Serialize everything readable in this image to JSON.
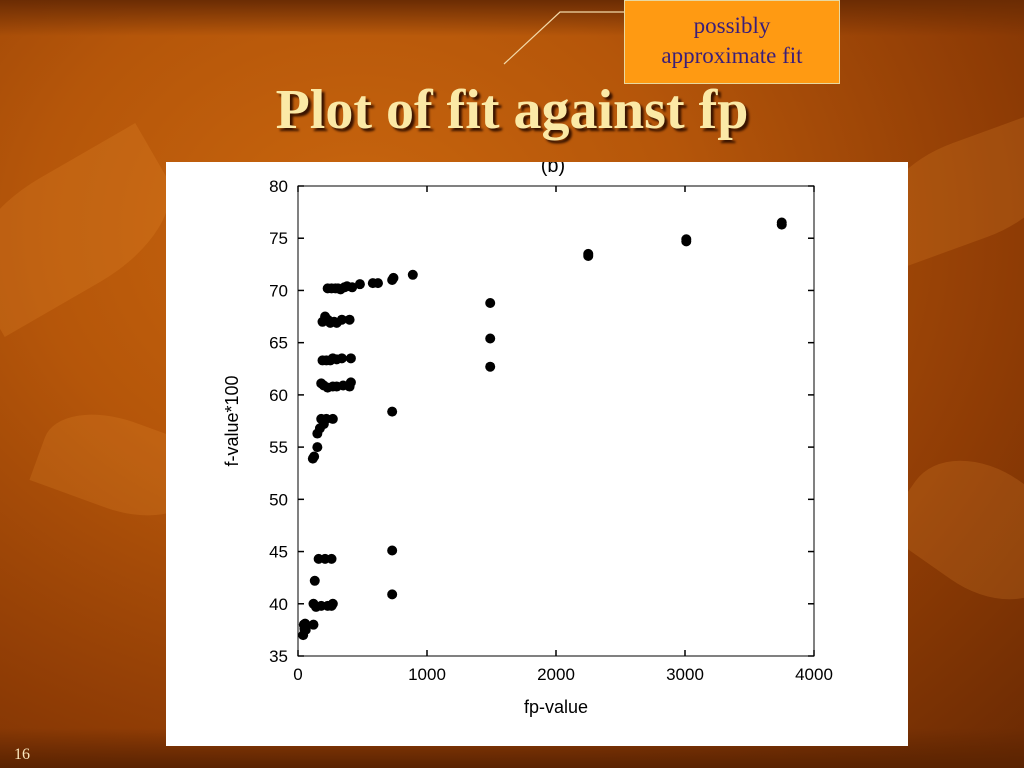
{
  "slide": {
    "title": "Plot of fit against fp",
    "number": "16"
  },
  "callout": {
    "line1": "possibly",
    "line2": "approximate fit"
  },
  "colors": {
    "background": "#b5560a",
    "title": "#fbe9a6",
    "callout_fill": "#ff9a12",
    "callout_text": "#3a1e7a"
  },
  "chart_data": {
    "type": "scatter",
    "title": "(b)",
    "xlabel": "fp-value",
    "ylabel": "f-value*100",
    "xlim": [
      0,
      4000
    ],
    "ylim": [
      35,
      80
    ],
    "xticks": [
      0,
      1000,
      2000,
      3000,
      4000
    ],
    "yticks": [
      35,
      40,
      45,
      50,
      55,
      60,
      65,
      70,
      75,
      80
    ],
    "grid": false,
    "points": [
      [
        40,
        37
      ],
      [
        45,
        38
      ],
      [
        50,
        37.6
      ],
      [
        55,
        38.1
      ],
      [
        60,
        37.5
      ],
      [
        120,
        38
      ],
      [
        120,
        40
      ],
      [
        140,
        39.7
      ],
      [
        180,
        39.8
      ],
      [
        230,
        39.8
      ],
      [
        270,
        40
      ],
      [
        260,
        39.8
      ],
      [
        130,
        42.2
      ],
      [
        160,
        44.3
      ],
      [
        210,
        44.3
      ],
      [
        260,
        44.3
      ],
      [
        115,
        53.9
      ],
      [
        125,
        54.1
      ],
      [
        150,
        55
      ],
      [
        150,
        56.3
      ],
      [
        170,
        56.8
      ],
      [
        200,
        57.2
      ],
      [
        180,
        57.7
      ],
      [
        220,
        57.7
      ],
      [
        270,
        57.7
      ],
      [
        180,
        61.1
      ],
      [
        200,
        60.9
      ],
      [
        230,
        60.7
      ],
      [
        270,
        60.8
      ],
      [
        300,
        60.8
      ],
      [
        350,
        60.9
      ],
      [
        400,
        60.8
      ],
      [
        410,
        61.2
      ],
      [
        190,
        63.3
      ],
      [
        220,
        63.3
      ],
      [
        250,
        63.3
      ],
      [
        270,
        63.5
      ],
      [
        300,
        63.4
      ],
      [
        340,
        63.5
      ],
      [
        410,
        63.5
      ],
      [
        190,
        67
      ],
      [
        210,
        67.5
      ],
      [
        230,
        67.2
      ],
      [
        250,
        66.9
      ],
      [
        280,
        67
      ],
      [
        300,
        66.9
      ],
      [
        340,
        67.2
      ],
      [
        400,
        67.2
      ],
      [
        230,
        70.2
      ],
      [
        260,
        70.2
      ],
      [
        290,
        70.2
      ],
      [
        310,
        70.2
      ],
      [
        330,
        70.1
      ],
      [
        360,
        70.3
      ],
      [
        380,
        70.4
      ],
      [
        420,
        70.3
      ],
      [
        480,
        70.6
      ],
      [
        580,
        70.7
      ],
      [
        620,
        70.7
      ],
      [
        730,
        71
      ],
      [
        740,
        71.2
      ],
      [
        890,
        71.5
      ],
      [
        730,
        58.4
      ],
      [
        730,
        45.1
      ],
      [
        730,
        40.9
      ],
      [
        1490,
        68.8
      ],
      [
        1490,
        65.4
      ],
      [
        1490,
        62.7
      ],
      [
        2250,
        73.3
      ],
      [
        2250,
        73.5
      ],
      [
        3010,
        74.7
      ],
      [
        3010,
        74.9
      ],
      [
        3750,
        76.3
      ],
      [
        3750,
        76.5
      ]
    ]
  }
}
